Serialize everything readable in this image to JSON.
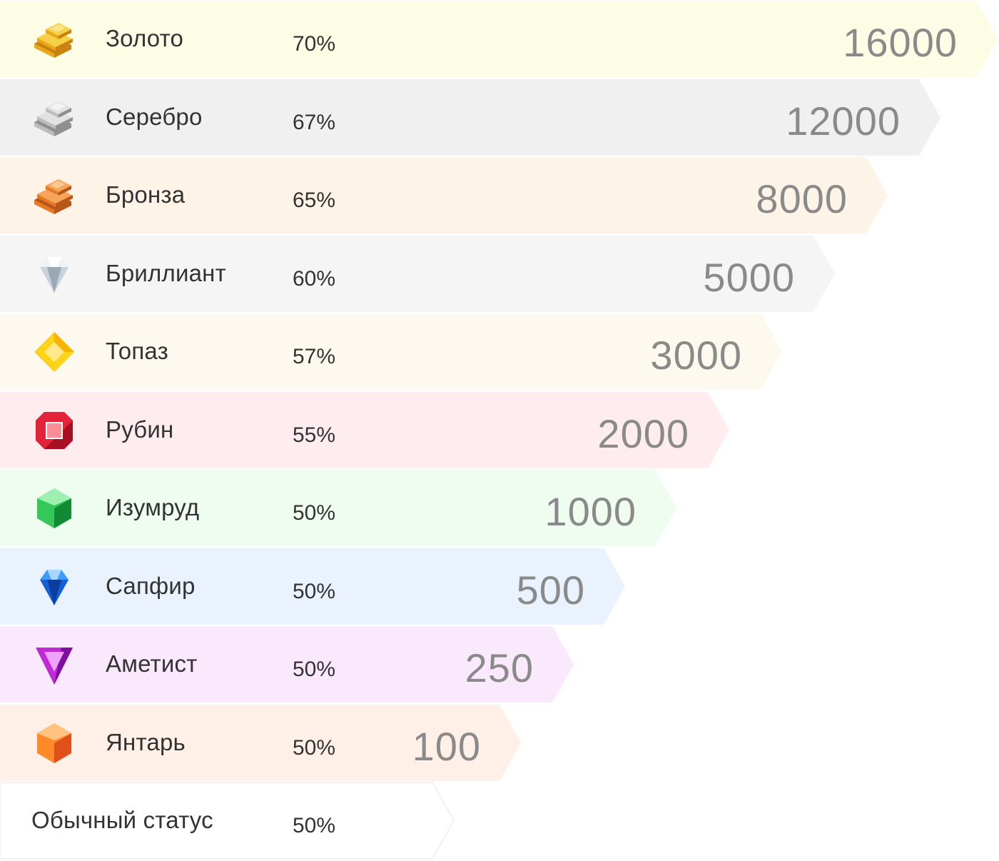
{
  "tiers": [
    {
      "name": "Золото",
      "percent": "70%",
      "amount": "16000",
      "color": "#fdfde6",
      "icon": "gold-bars-icon"
    },
    {
      "name": "Серебро",
      "percent": "67%",
      "amount": "12000",
      "color": "#f0f0f0",
      "icon": "silver-bars-icon"
    },
    {
      "name": "Бронза",
      "percent": "65%",
      "amount": "8000",
      "color": "#fef3e7",
      "icon": "bronze-bars-icon"
    },
    {
      "name": "Бриллиант",
      "percent": "60%",
      "amount": "5000",
      "color": "#f5f5f5",
      "icon": "diamond-icon"
    },
    {
      "name": "Топаз",
      "percent": "57%",
      "amount": "3000",
      "color": "#fef9ee",
      "icon": "topaz-icon"
    },
    {
      "name": "Рубин",
      "percent": "55%",
      "amount": "2000",
      "color": "#feecee",
      "icon": "ruby-icon"
    },
    {
      "name": "Изумруд",
      "percent": "50%",
      "amount": "1000",
      "color": "#effcf0",
      "icon": "emerald-icon"
    },
    {
      "name": "Сапфир",
      "percent": "50%",
      "amount": "500",
      "color": "#e9f2fd",
      "icon": "sapphire-icon"
    },
    {
      "name": "Аметист",
      "percent": "50%",
      "amount": "250",
      "color": "#fae9fc",
      "icon": "amethyst-icon"
    },
    {
      "name": "Янтарь",
      "percent": "50%",
      "amount": "100",
      "color": "#fef0e6",
      "icon": "amber-icon"
    },
    {
      "name": "Обычный статус",
      "percent": "50%",
      "amount": "",
      "color": "#ffffff",
      "icon": ""
    }
  ]
}
